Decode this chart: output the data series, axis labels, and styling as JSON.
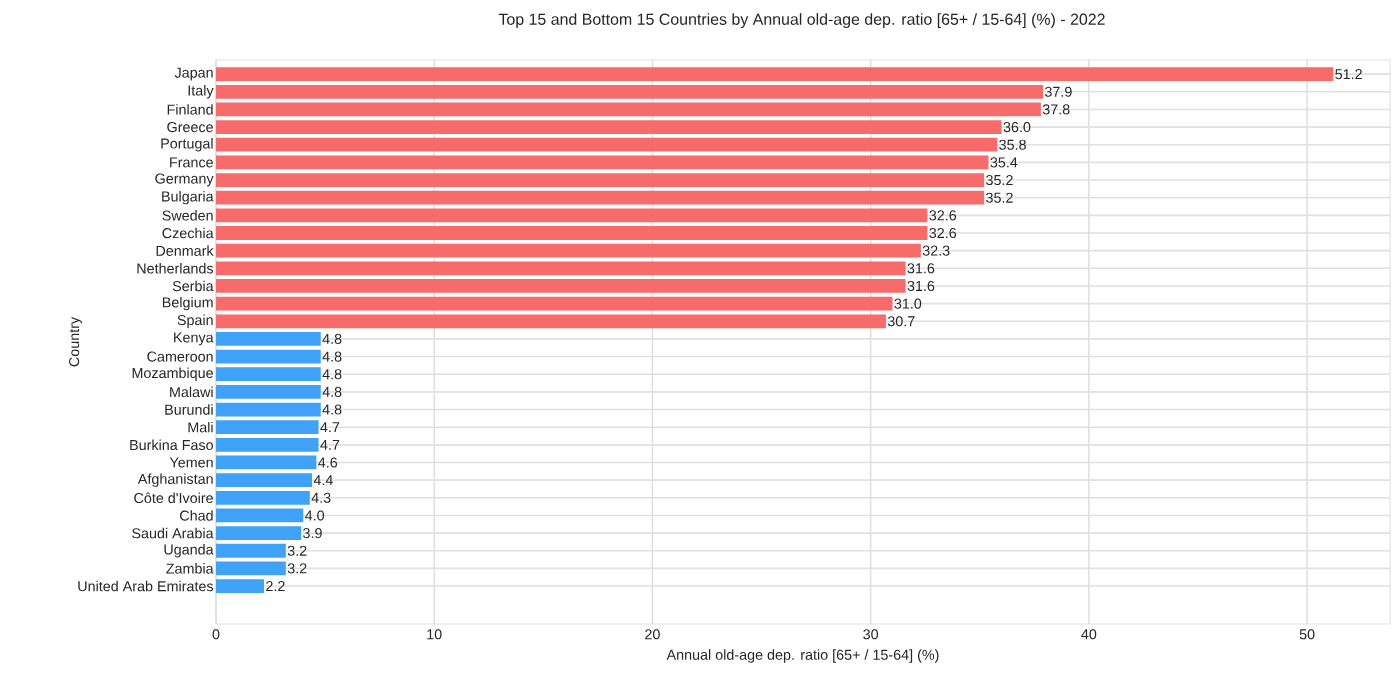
{
  "chart_data": {
    "type": "bar",
    "orientation": "horizontal",
    "title": "Top 15 and Bottom 15 Countries by Annual old-age dep. ratio [65+ / 15-64] (%) - 2022",
    "xlabel": "Annual old-age dep. ratio [65+ / 15-64] (%)",
    "ylabel": "Country",
    "categories": [
      "Japan",
      "Italy",
      "Finland",
      "Greece",
      "Portugal",
      "France",
      "Germany",
      "Bulgaria",
      "Sweden",
      "Czechia",
      "Denmark",
      "Netherlands",
      "Serbia",
      "Belgium",
      "Spain",
      "Kenya",
      "Cameroon",
      "Mozambique",
      "Malawi",
      "Burundi",
      "Mali",
      "Burkina Faso",
      "Yemen",
      "Afghanistan",
      "Côte d'Ivoire",
      "Chad",
      "Saudi Arabia",
      "Uganda",
      "Zambia",
      "United Arab Emirates"
    ],
    "values": [
      51.2,
      37.9,
      37.8,
      36.0,
      35.8,
      35.4,
      35.2,
      35.2,
      32.6,
      32.6,
      32.3,
      31.6,
      31.6,
      31.0,
      30.7,
      4.8,
      4.8,
      4.8,
      4.8,
      4.8,
      4.7,
      4.7,
      4.6,
      4.4,
      4.3,
      4.0,
      3.9,
      3.2,
      3.2,
      2.2
    ],
    "colors": [
      "#f76b6b",
      "#f76b6b",
      "#f76b6b",
      "#f76b6b",
      "#f76b6b",
      "#f76b6b",
      "#f76b6b",
      "#f76b6b",
      "#f76b6b",
      "#f76b6b",
      "#f76b6b",
      "#f76b6b",
      "#f76b6b",
      "#f76b6b",
      "#f76b6b",
      "#3fa2f6",
      "#3fa2f6",
      "#3fa2f6",
      "#3fa2f6",
      "#3fa2f6",
      "#3fa2f6",
      "#3fa2f6",
      "#3fa2f6",
      "#3fa2f6",
      "#3fa2f6",
      "#3fa2f6",
      "#3fa2f6",
      "#3fa2f6",
      "#3fa2f6",
      "#3fa2f6"
    ],
    "xlim": [
      0,
      53.8
    ],
    "xticks": [
      0,
      10,
      20,
      30,
      40,
      50
    ],
    "value_labels": [
      "51.2",
      "37.9",
      "37.8",
      "36.0",
      "35.8",
      "35.4",
      "35.2",
      "35.2",
      "32.6",
      "32.6",
      "32.3",
      "31.6",
      "31.6",
      "31.0",
      "30.7",
      "4.8",
      "4.8",
      "4.8",
      "4.8",
      "4.8",
      "4.7",
      "4.7",
      "4.6",
      "4.4",
      "4.3",
      "4.0",
      "3.9",
      "3.2",
      "3.2",
      "2.2"
    ],
    "grid": true
  }
}
